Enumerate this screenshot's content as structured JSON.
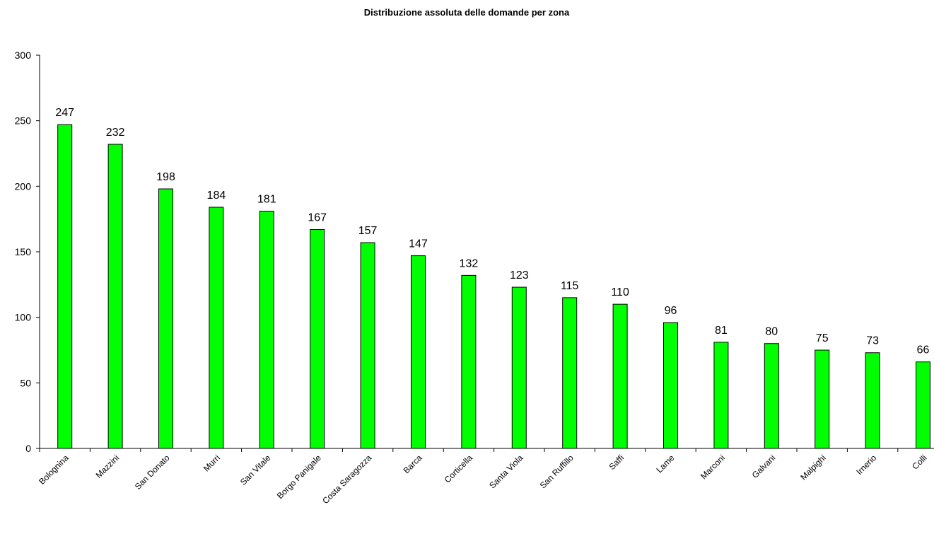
{
  "chart_data": {
    "type": "bar",
    "title": "Distribuzione assoluta delle domande per zona",
    "xlabel": "",
    "ylabel": "",
    "categories": [
      "Bolognina",
      "Mazzini",
      "San Donato",
      "Murri",
      "San Vitale",
      "Borgo Panigale",
      "Costa Saragozza",
      "Barca",
      "Corticella",
      "Santa Viola",
      "San Ruffillo",
      "Saffi",
      "Lame",
      "Marconi",
      "Galvani",
      "Malpighi",
      "Irnerio",
      "Colli"
    ],
    "values": [
      247,
      232,
      198,
      184,
      181,
      167,
      157,
      147,
      132,
      123,
      115,
      110,
      96,
      81,
      80,
      75,
      73,
      66
    ],
    "ylim": [
      0,
      300
    ],
    "yticks": [
      0,
      50,
      100,
      150,
      200,
      250,
      300
    ],
    "grid": false,
    "legend": "none",
    "bar_color": "#00ff00",
    "bar_edge_color": "#000000"
  }
}
